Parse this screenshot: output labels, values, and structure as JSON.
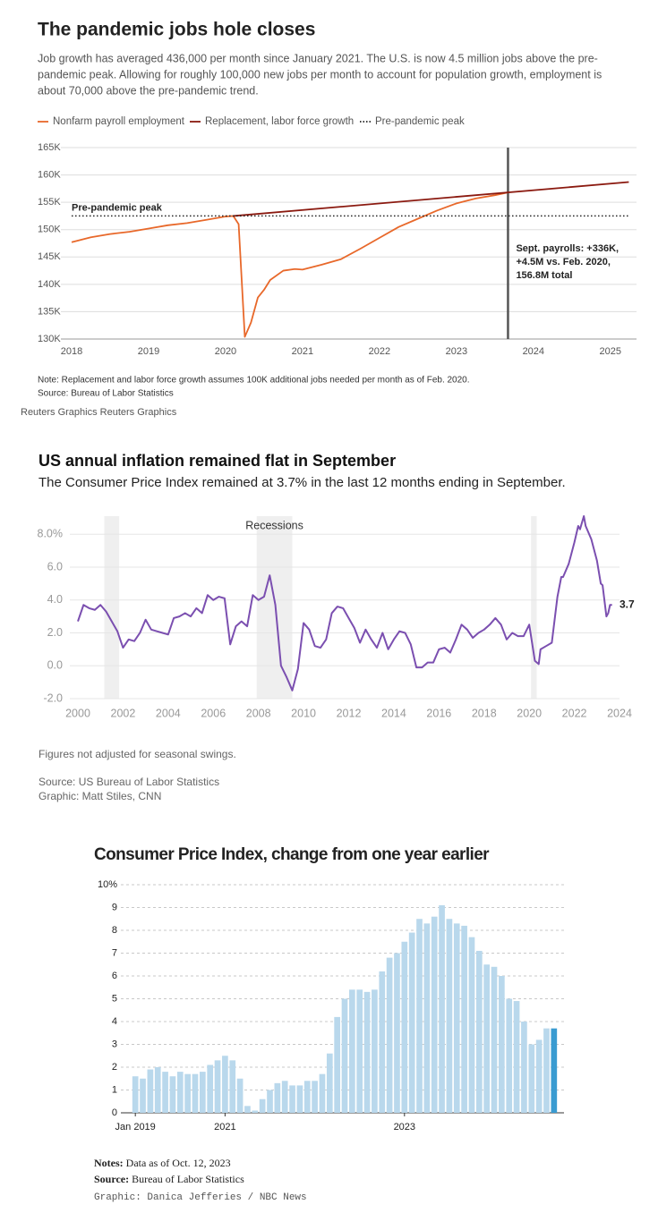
{
  "chart_data": [
    {
      "type": "line",
      "title": "The pandemic jobs hole closes",
      "subtitle": [
        "Job growth has averaged 436,000 per month since January 2021. The U.S. is now 4.5 million jobs above the pre-",
        "pandemic peak. Allowing for roughly 100,000 new jobs per month to account for population growth, employment is",
        "about 70,000 above the pre-pandemic trend."
      ],
      "series": [
        {
          "name": "Nonfarm payroll employment",
          "color": "#e8682a",
          "style": "solid",
          "x": [
            2018.0,
            2018.25,
            2018.5,
            2018.75,
            2019.0,
            2019.25,
            2019.5,
            2019.75,
            2020.0,
            2020.1,
            2020.17,
            2020.25,
            2020.33,
            2020.42,
            2020.5,
            2020.58,
            2020.75,
            2020.9,
            2021.0,
            2021.25,
            2021.5,
            2021.75,
            2022.0,
            2022.25,
            2022.5,
            2022.75,
            2023.0,
            2023.25,
            2023.5,
            2023.67
          ],
          "values": [
            147.7,
            148.6,
            149.2,
            149.6,
            150.2,
            150.8,
            151.2,
            151.8,
            152.4,
            152.5,
            151.0,
            130.4,
            133.0,
            137.6,
            139.0,
            140.8,
            142.5,
            142.8,
            142.7,
            143.6,
            144.6,
            146.5,
            148.5,
            150.5,
            152.0,
            153.5,
            154.8,
            155.7,
            156.3,
            156.8
          ]
        },
        {
          "name": "Replacement, labor force growth",
          "color": "#8b1a10",
          "style": "solid",
          "x": [
            2020.1,
            2025.24
          ],
          "values": [
            152.5,
            158.7
          ]
        },
        {
          "name": "Pre-pandemic peak",
          "color": "#222222",
          "style": "dotted",
          "x": [
            2018.0,
            2025.24
          ],
          "values": [
            152.5,
            152.5
          ]
        }
      ],
      "xlim": [
        2017.86,
        2025.34
      ],
      "xticks": [
        2018,
        2019,
        2020,
        2021,
        2022,
        2023,
        2024,
        2025
      ],
      "ylim": [
        130,
        165
      ],
      "yticks": [
        {
          "value": 130,
          "label": "130K"
        },
        {
          "value": 135,
          "label": "135K"
        },
        {
          "value": 140,
          "label": "140K"
        },
        {
          "value": 145,
          "label": "145K"
        },
        {
          "value": 150,
          "label": "150K"
        },
        {
          "value": 155,
          "label": "155K"
        },
        {
          "value": 160,
          "label": "160K"
        },
        {
          "value": 165,
          "label": "165K"
        }
      ],
      "grid": true,
      "peak_label": "Pre-pandemic peak",
      "vline": 2023.67,
      "vline_annotation": [
        "Sept. payrolls: +336K,",
        "+4.5M vs. Feb. 2020,",
        "156.8M total"
      ],
      "note": "Note: Replacement and labor force growth assumes 100K additional jobs needed per month as of Feb. 2020.",
      "source": "Source: Bureau of Labor Statistics",
      "credit": "Reuters Graphics Reuters Graphics"
    },
    {
      "type": "line",
      "title": "US annual inflation remained flat in September",
      "subtitle": "The Consumer Price Index remained at 3.7% in the last 12 months ending in September.",
      "series": [
        {
          "name": "CPI",
          "color": "#7b4fb0",
          "style": "solid",
          "x": [
            2000.0,
            2000.25,
            2000.5,
            2000.75,
            2001.0,
            2001.25,
            2001.5,
            2001.75,
            2002.0,
            2002.25,
            2002.5,
            2002.75,
            2003.0,
            2003.25,
            2003.5,
            2003.75,
            2004.0,
            2004.25,
            2004.5,
            2004.75,
            2005.0,
            2005.25,
            2005.5,
            2005.75,
            2006.0,
            2006.25,
            2006.5,
            2006.75,
            2007.0,
            2007.25,
            2007.5,
            2007.75,
            2008.0,
            2008.25,
            2008.5,
            2008.75,
            2009.0,
            2009.25,
            2009.5,
            2009.75,
            2010.0,
            2010.25,
            2010.5,
            2010.75,
            2011.0,
            2011.25,
            2011.5,
            2011.75,
            2012.0,
            2012.25,
            2012.5,
            2012.75,
            2013.0,
            2013.25,
            2013.5,
            2013.75,
            2014.0,
            2014.25,
            2014.5,
            2014.75,
            2015.0,
            2015.25,
            2015.5,
            2015.75,
            2016.0,
            2016.25,
            2016.5,
            2016.75,
            2017.0,
            2017.25,
            2017.5,
            2017.75,
            2018.0,
            2018.25,
            2018.5,
            2018.75,
            2019.0,
            2019.25,
            2019.5,
            2019.75,
            2020.0,
            2020.25,
            2020.42,
            2020.5,
            2020.75,
            2021.0,
            2021.25,
            2021.42,
            2021.5,
            2021.75,
            2022.0,
            2022.17,
            2022.25,
            2022.42,
            2022.5,
            2022.75,
            2023.0,
            2023.17,
            2023.25,
            2023.42,
            2023.5,
            2023.58,
            2023.67
          ],
          "values": [
            2.7,
            3.7,
            3.5,
            3.4,
            3.7,
            3.3,
            2.7,
            2.1,
            1.1,
            1.6,
            1.5,
            2.0,
            2.8,
            2.2,
            2.1,
            2.0,
            1.9,
            2.9,
            3.0,
            3.2,
            3.0,
            3.5,
            3.2,
            4.3,
            4.0,
            4.2,
            4.1,
            1.3,
            2.4,
            2.7,
            2.4,
            4.3,
            4.0,
            4.2,
            5.5,
            3.7,
            0.0,
            -0.7,
            -1.5,
            -0.2,
            2.6,
            2.2,
            1.2,
            1.1,
            1.6,
            3.2,
            3.6,
            3.5,
            2.9,
            2.3,
            1.4,
            2.2,
            1.6,
            1.1,
            2.0,
            1.0,
            1.6,
            2.1,
            2.0,
            1.3,
            -0.1,
            -0.1,
            0.2,
            0.2,
            1.0,
            1.1,
            0.8,
            1.6,
            2.5,
            2.2,
            1.7,
            2.0,
            2.2,
            2.5,
            2.9,
            2.5,
            1.6,
            2.0,
            1.8,
            1.8,
            2.5,
            0.3,
            0.1,
            1.0,
            1.2,
            1.4,
            4.2,
            5.4,
            5.4,
            6.2,
            7.5,
            8.5,
            8.3,
            9.1,
            8.5,
            7.7,
            6.4,
            5.0,
            4.9,
            3.0,
            3.2,
            3.7,
            3.7
          ]
        }
      ],
      "xlim": [
        2000,
        2024
      ],
      "xticks": [
        2000,
        2002,
        2004,
        2006,
        2008,
        2010,
        2012,
        2014,
        2016,
        2018,
        2020,
        2022,
        2024
      ],
      "ylim": [
        -2,
        9.1
      ],
      "yticks": [
        {
          "value": -2,
          "label": "-2.0"
        },
        {
          "value": 0,
          "label": "0.0"
        },
        {
          "value": 2,
          "label": "2.0"
        },
        {
          "value": 4,
          "label": "4.0"
        },
        {
          "value": 6,
          "label": "6.0"
        },
        {
          "value": 8,
          "label": "8.0%"
        }
      ],
      "grid": true,
      "shaded_label": "Recessions",
      "shaded_ranges": [
        [
          2001.17,
          2001.83
        ],
        [
          2007.92,
          2009.5
        ],
        [
          2020.08,
          2020.33
        ]
      ],
      "shade_color": "#efefef",
      "end_label": {
        "value": 3.7,
        "label": "3.7"
      },
      "note": "Figures not adjusted for seasonal swings.",
      "source": "Source: US Bureau of Labor Statistics",
      "credit": "Graphic: Matt Stiles, CNN"
    },
    {
      "type": "bar",
      "title": "Consumer Price Index, change from one year earlier",
      "categories": [
        "Jan 2019",
        null,
        null,
        null,
        null,
        null,
        null,
        null,
        null,
        null,
        null,
        null,
        "2021",
        null,
        null,
        null,
        null,
        null,
        null,
        null,
        null,
        null,
        null,
        null,
        null,
        null,
        null,
        null,
        null,
        null,
        null,
        null,
        null,
        null,
        null,
        null,
        "2023",
        null,
        null,
        null,
        null,
        null,
        null,
        null,
        null,
        null,
        null,
        null,
        null,
        null,
        null,
        null,
        null,
        null,
        null,
        null,
        null
      ],
      "values": [
        1.6,
        1.5,
        1.9,
        2.0,
        1.8,
        1.6,
        1.8,
        1.7,
        1.7,
        1.8,
        2.1,
        2.3,
        2.5,
        2.3,
        1.5,
        0.3,
        0.1,
        0.6,
        1.0,
        1.3,
        1.4,
        1.2,
        1.2,
        1.4,
        1.4,
        1.7,
        2.6,
        4.2,
        5.0,
        5.4,
        5.4,
        5.3,
        5.4,
        6.2,
        6.8,
        7.0,
        7.5,
        7.9,
        8.5,
        8.3,
        8.6,
        9.1,
        8.5,
        8.3,
        8.2,
        7.7,
        7.1,
        6.5,
        6.4,
        6.0,
        5.0,
        4.9,
        4.0,
        3.0,
        3.2,
        3.7,
        3.7
      ],
      "color": "#b9d8ec",
      "highlight": {
        "index": 56,
        "color": "#3a9bd1"
      },
      "ylim": [
        0,
        10
      ],
      "yticks": [
        0,
        1,
        2,
        3,
        4,
        5,
        6,
        7,
        8,
        9,
        {
          "value": 10,
          "label": "10%"
        }
      ],
      "grid": true,
      "notes_label": "Notes:",
      "notes": "Data as of Oct. 12, 2023",
      "source_label": "Source:",
      "source": "Bureau of Labor Statistics",
      "credit": "Graphic: Danica Jefferies / NBC News"
    }
  ]
}
